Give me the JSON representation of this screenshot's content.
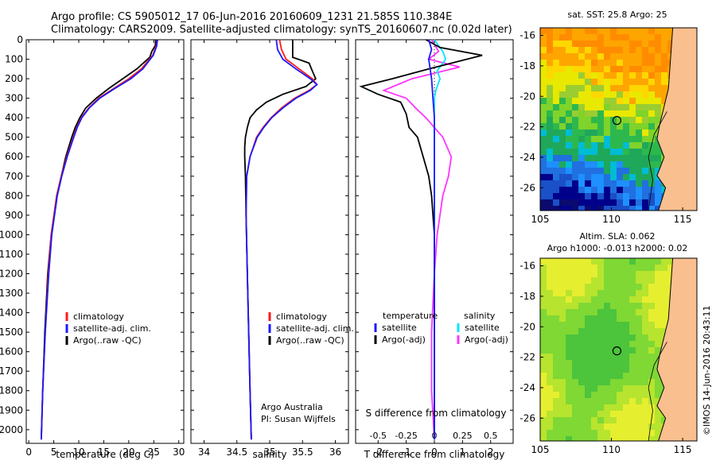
{
  "header": {
    "line1": "Argo profile: CS 5905012_17 06-Jun-2016 20160609_1231 21.585S 110.384E",
    "line2": "Climatology: CARS2009. Satellite-adjusted climatology: synTS_20160607.nc (0.02d later)"
  },
  "colors": {
    "climatology": "#ff1a1a",
    "satellite": "#1a1aff",
    "argo": "#000000",
    "sat_salinity": "#00e5ff",
    "argo_adj_salinity": "#ff33ff"
  },
  "chart_data": [
    {
      "type": "line",
      "xlabel": "temperature (deg C)",
      "ylabel": "",
      "xlim": [
        -0.5,
        31
      ],
      "ylim": [
        2070,
        0
      ],
      "xticks": [
        "0",
        "5",
        "10",
        "15",
        "20",
        "25",
        "30"
      ],
      "yticks": [
        "0",
        "100",
        "200",
        "300",
        "400",
        "500",
        "600",
        "700",
        "800",
        "900",
        "1000",
        "1100",
        "1200",
        "1300",
        "1400",
        "1500",
        "1600",
        "1700",
        "1800",
        "1900",
        "2000"
      ],
      "legend": [
        "climatology",
        "satellite-adj. clim.",
        "Argo(..raw -QC)"
      ],
      "series": [
        {
          "name": "climatology",
          "depth": [
            0,
            30,
            80,
            150,
            200,
            250,
            300,
            350,
            400,
            450,
            500,
            600,
            700,
            800,
            1000,
            1200,
            1500,
            1800,
            2050
          ],
          "values": [
            25.8,
            25.5,
            24.8,
            22.5,
            20.0,
            17.0,
            14.0,
            12.0,
            10.5,
            9.6,
            8.9,
            7.6,
            6.5,
            5.6,
            4.5,
            3.9,
            3.3,
            2.8,
            2.5
          ]
        },
        {
          "name": "satellite-adj. clim.",
          "depth": [
            0,
            30,
            80,
            150,
            200,
            250,
            300,
            350,
            400,
            450,
            500,
            600,
            700,
            800,
            1000,
            1200,
            1500,
            1800,
            2050
          ],
          "values": [
            25.7,
            25.6,
            24.9,
            22.8,
            20.4,
            17.2,
            14.2,
            12.1,
            10.6,
            9.7,
            9.0,
            7.7,
            6.6,
            5.7,
            4.6,
            4.0,
            3.3,
            2.8,
            2.5
          ]
        },
        {
          "name": "Argo(..raw -QC)",
          "depth": [
            0,
            30,
            60,
            90,
            150,
            200,
            250,
            300,
            350,
            400,
            450,
            500,
            600,
            700,
            800,
            1000,
            1200,
            1500,
            1800,
            2050
          ],
          "values": [
            25.4,
            25.3,
            24.6,
            24.2,
            21.6,
            18.8,
            16.0,
            13.5,
            11.4,
            10.2,
            9.3,
            8.6,
            7.4,
            6.5,
            5.6,
            4.5,
            3.8,
            3.2,
            2.8,
            2.5
          ]
        }
      ]
    },
    {
      "type": "line",
      "xlabel": "salinity",
      "xlim": [
        33.8,
        36.2
      ],
      "ylim": [
        2070,
        0
      ],
      "xticks": [
        "34",
        "34.5",
        "35",
        "35.5",
        "36"
      ],
      "legend": [
        "climatology",
        "satellite-adj. clim.",
        "Argo(..raw -QC)"
      ],
      "annotation": [
        "Argo Australia",
        "PI: Susan Wijffels"
      ],
      "series": [
        {
          "name": "climatology",
          "depth": [
            0,
            50,
            100,
            150,
            200,
            230,
            260,
            300,
            350,
            400,
            450,
            500,
            600,
            700,
            900,
            1200,
            1500,
            1800,
            2050
          ],
          "values": [
            35.15,
            35.18,
            35.25,
            35.45,
            35.65,
            35.72,
            35.6,
            35.38,
            35.18,
            35.02,
            34.9,
            34.8,
            34.7,
            34.65,
            34.64,
            34.66,
            34.68,
            34.7,
            34.72
          ]
        },
        {
          "name": "satellite-adj. clim.",
          "depth": [
            0,
            50,
            100,
            150,
            200,
            230,
            260,
            300,
            350,
            400,
            450,
            500,
            600,
            700,
            900,
            1200,
            1500,
            1800,
            2050
          ],
          "values": [
            35.1,
            35.12,
            35.2,
            35.4,
            35.62,
            35.72,
            35.62,
            35.4,
            35.2,
            35.03,
            34.91,
            34.81,
            34.7,
            34.65,
            34.64,
            34.66,
            34.68,
            34.7,
            34.72
          ]
        },
        {
          "name": "Argo(..raw -QC)",
          "depth": [
            0,
            50,
            90,
            120,
            160,
            200,
            240,
            280,
            320,
            360,
            400,
            450,
            500,
            550,
            600,
            700,
            900,
            1200,
            1500,
            1800,
            2050
          ],
          "values": [
            35.35,
            35.35,
            35.35,
            35.6,
            35.65,
            35.7,
            35.55,
            35.2,
            34.95,
            34.8,
            34.7,
            34.66,
            34.63,
            34.62,
            34.62,
            34.63,
            34.64,
            34.66,
            34.68,
            34.7,
            34.72
          ]
        }
      ]
    },
    {
      "type": "line",
      "xlabel": "T difference from climatology",
      "xlabel_top": "S difference from climatology",
      "xlim": [
        -2.8,
        2.8
      ],
      "ylim": [
        2070,
        0
      ],
      "xticks_bottom": [
        "-2",
        "-1",
        "0",
        "1",
        "2"
      ],
      "xticks_top": [
        "-0.5",
        "-0.25",
        "0",
        "0.25",
        "0.5"
      ],
      "legend": {
        "temperature": [
          "satellite",
          "Argo(-adj)"
        ],
        "salinity": [
          "satellite",
          "Argo(-adj)"
        ]
      },
      "series": [
        {
          "name": "satellite",
          "depth": [
            0,
            50,
            100,
            150,
            200,
            300,
            400,
            600,
            800,
            1200,
            1600,
            2050
          ],
          "values": [
            -0.2,
            -0.1,
            -0.2,
            -0.15,
            -0.1,
            -0.05,
            0.0,
            0.0,
            0.0,
            0.0,
            0.0,
            0.0
          ]
        },
        {
          "name": "Argo(-adj)",
          "depth": [
            0,
            40,
            80,
            150,
            200,
            240,
            280,
            320,
            380,
            450,
            500,
            600,
            700,
            800,
            1000,
            1200,
            1500,
            1800,
            2050
          ],
          "values": [
            -0.3,
            0.2,
            1.7,
            -0.2,
            -1.5,
            -2.6,
            -2.0,
            -1.2,
            -1.0,
            -0.9,
            -0.6,
            -0.4,
            -0.2,
            -0.1,
            0.0,
            0.0,
            0.0,
            0.0,
            0.0
          ]
        },
        {
          "name": "satellite (salinity)",
          "depth": [
            0,
            60,
            100,
            160,
            200,
            260,
            300,
            400,
            600,
            800,
            1200,
            1600,
            2050
          ],
          "values": [
            0.0,
            0.3,
            0.4,
            0.1,
            0.2,
            0.05,
            0.0,
            0.0,
            0.0,
            0.0,
            0.0,
            0.0,
            0.0
          ]
        },
        {
          "name": "Argo(-adj) (salinity)",
          "depth": [
            0,
            60,
            100,
            140,
            200,
            260,
            300,
            360,
            400,
            500,
            600,
            700,
            800,
            1000,
            1200,
            1500,
            1800,
            2050
          ],
          "values": [
            -0.1,
            0.15,
            -0.2,
            0.9,
            -0.8,
            -1.8,
            -1.0,
            -0.6,
            -0.3,
            0.3,
            0.6,
            0.5,
            0.3,
            0.1,
            0.0,
            -0.1,
            -0.1,
            0.0
          ]
        }
      ]
    },
    {
      "type": "heatmap",
      "title": "sat. SST: 25.8 Argo: 25",
      "xlim": [
        105,
        116
      ],
      "ylim": [
        -27.5,
        -15.5
      ],
      "xticks": [
        "105",
        "110",
        "115"
      ],
      "yticks": [
        "-16",
        "-18",
        "-20",
        "-22",
        "-24",
        "-26"
      ],
      "marker": {
        "lon": 110.384,
        "lat": -21.585
      }
    },
    {
      "type": "heatmap",
      "title_lines": [
        "Altim. SLA: 0.062",
        "Argo h1000: -0.013 h2000: 0.02"
      ],
      "xlim": [
        105,
        116
      ],
      "ylim": [
        -27.5,
        -15.5
      ],
      "xticks": [
        "105",
        "110",
        "115"
      ],
      "yticks": [
        "-16",
        "-18",
        "-20",
        "-22",
        "-24",
        "-26"
      ],
      "marker": {
        "lon": 110.384,
        "lat": -21.585
      }
    }
  ],
  "footer": {
    "credit": "©IMOS 14-Jun-2016 20:43:11"
  }
}
